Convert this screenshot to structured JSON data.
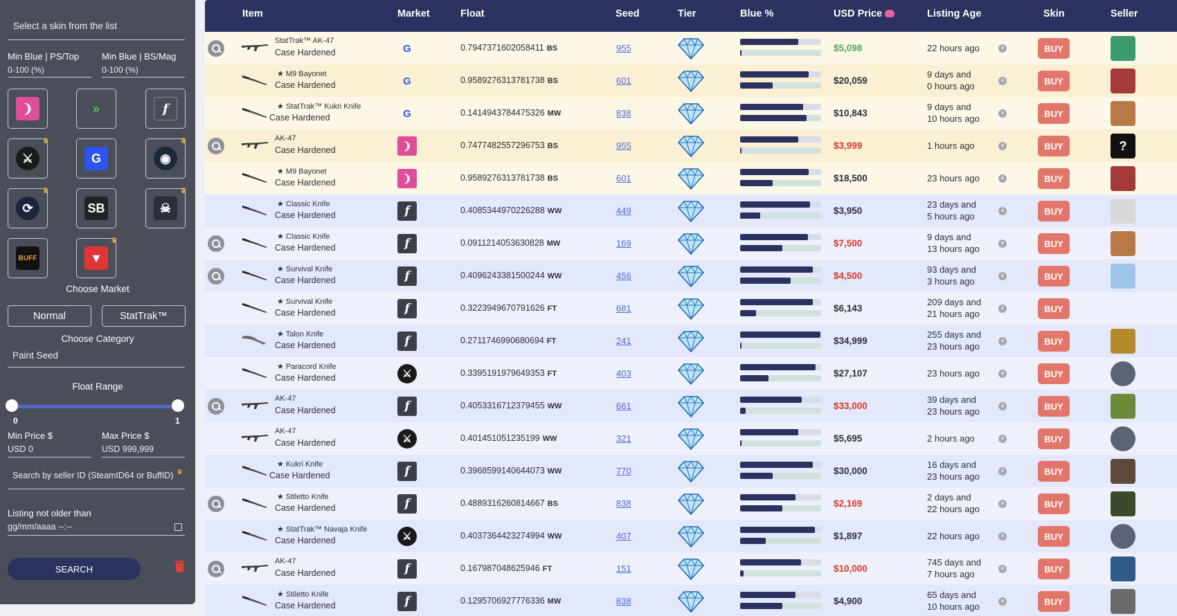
{
  "sidebar": {
    "skin_placeholder": "Select a skin from the list",
    "min_blue_ps_label": "Min Blue | PS/Top",
    "min_blue_ps_value": "0-100 (%)",
    "min_blue_bs_label": "Min Blue | BS/Mag",
    "min_blue_bs_value": "0-100 (%)",
    "choose_market": "Choose Market",
    "normal": "Normal",
    "stattrak": "StatTrak™",
    "choose_category": "Choose Category",
    "paint_seed": "Paint Seed",
    "float_range": "Float Range",
    "float_min": "0",
    "float_max": "1",
    "min_price_label": "Min Price $",
    "min_price_value": "USD 0",
    "max_price_label": "Max Price $",
    "max_price_value": "USD 999,999",
    "seller_search": "Search by seller ID (SteamID64 or BuffID)",
    "listing_age_label": "Listing not older than",
    "listing_age_value": "gg/mm/aaaa --:--",
    "search": "SEARCH",
    "markets": [
      {
        "name": "csfloat",
        "color": "#e04d9a",
        "glyph": "❩",
        "premium": false
      },
      {
        "name": "dmarket",
        "color": "#4a4e59",
        "glyph": "»",
        "premium": false
      },
      {
        "name": "skinport",
        "color": "#4a4e59",
        "glyph": "f",
        "premium": false
      },
      {
        "name": "skinbid",
        "color": "#1a1a1a",
        "glyph": "⚔",
        "premium": true
      },
      {
        "name": "gamerpay",
        "color": "#2d55ee",
        "glyph": "G",
        "premium": false
      },
      {
        "name": "steam",
        "color": "#1b2838",
        "glyph": "◉",
        "premium": true
      },
      {
        "name": "csmoney",
        "color": "#1d2440",
        "glyph": "⟳",
        "premium": true
      },
      {
        "name": "skinbaron",
        "color": "#222222",
        "glyph": "SB",
        "premium": false
      },
      {
        "name": "lootfarm",
        "color": "#2a2f3a",
        "glyph": "☠",
        "premium": true
      },
      {
        "name": "buff",
        "color": "#111111",
        "glyph": "BUFF",
        "premium": false
      },
      {
        "name": "waxpeer",
        "color": "#e03535",
        "glyph": "▼",
        "premium": true
      }
    ]
  },
  "table": {
    "headers": {
      "item": "Item",
      "market": "Market",
      "float": "Float",
      "seed": "Seed",
      "tier": "Tier",
      "blue": "Blue %",
      "price": "USD Price",
      "age": "Listing Age",
      "skin": "Skin",
      "seller": "Seller"
    },
    "buy_label": "BUY",
    "rows": [
      {
        "name": "StatTrak™ AK-47",
        "sub": "Case Hardened",
        "market": "gamerpay",
        "float": "0.7947371602058411",
        "wear": "BS",
        "seed": "955",
        "blue_top": 72,
        "blue_bot": 2,
        "price": "$5,098",
        "price_color": "green",
        "age": [
          "22 hours ago"
        ],
        "zoom": true,
        "avatar": "#3b9b6e",
        "avatar_round": false,
        "avatar_glyph": "",
        "row_style": "yellow",
        "weapon": "rifle"
      },
      {
        "name": "★ M9 Bayonet",
        "sub": "Case Hardened",
        "market": "gamerpay",
        "float": "0.9589276313781738",
        "wear": "BS",
        "seed": "601",
        "blue_top": 85,
        "blue_bot": 40,
        "price": "$20,059",
        "price_color": "",
        "age": [
          "9 days and",
          "0 hours ago"
        ],
        "zoom": false,
        "avatar": "#a43a3a",
        "avatar_round": false,
        "avatar_glyph": "",
        "row_style": "yellow dark",
        "weapon": "knife"
      },
      {
        "name": "★ StatTrak™ Kukri Knife",
        "sub": "Case Hardened",
        "market": "gamerpay",
        "float": "0.1414943784475326",
        "wear": "MW",
        "seed": "838",
        "blue_top": 78,
        "blue_bot": 82,
        "price": "$10,843",
        "price_color": "",
        "age": [
          "9 days and",
          "10 hours ago"
        ],
        "zoom": false,
        "avatar": "#b87a45",
        "avatar_round": false,
        "avatar_glyph": "",
        "row_style": "yellow",
        "weapon": "knife"
      },
      {
        "name": "AK-47",
        "sub": "Case Hardened",
        "market": "csfloat",
        "float": "0.7477482557296753",
        "wear": "BS",
        "seed": "955",
        "blue_top": 72,
        "blue_bot": 2,
        "price": "$3,999",
        "price_color": "red",
        "age": [
          "1 hours ago"
        ],
        "zoom": true,
        "avatar": "#111111",
        "avatar_round": false,
        "avatar_glyph": "?",
        "row_style": "yellow dark",
        "weapon": "rifle"
      },
      {
        "name": "★ M9 Bayonet",
        "sub": "Case Hardened",
        "market": "csfloat",
        "float": "0.9589276313781738",
        "wear": "BS",
        "seed": "601",
        "blue_top": 85,
        "blue_bot": 40,
        "price": "$18,500",
        "price_color": "",
        "age": [
          "23 hours ago"
        ],
        "zoom": false,
        "avatar": "#a43a3a",
        "avatar_round": false,
        "avatar_glyph": "",
        "row_style": "yellow",
        "weapon": "knife"
      },
      {
        "name": "★ Classic Knife",
        "sub": "Case Hardened",
        "market": "skinport",
        "float": "0.4085344970226288",
        "wear": "WW",
        "seed": "449",
        "blue_top": 86,
        "blue_bot": 25,
        "price": "$3,950",
        "price_color": "",
        "age": [
          "23 days and",
          "5 hours ago"
        ],
        "zoom": false,
        "avatar": "#d8d8d8",
        "avatar_round": false,
        "avatar_glyph": "",
        "row_style": "blue",
        "weapon": "knife"
      },
      {
        "name": "★ Classic Knife",
        "sub": "Case Hardened",
        "market": "skinport",
        "float": "0.0911214053630828",
        "wear": "MW",
        "seed": "169",
        "blue_top": 84,
        "blue_bot": 52,
        "price": "$7,500",
        "price_color": "red",
        "age": [
          "9 days and",
          "13 hours ago"
        ],
        "zoom": true,
        "avatar": "#b87a45",
        "avatar_round": false,
        "avatar_glyph": "",
        "row_style": "blue light",
        "weapon": "knife"
      },
      {
        "name": "★ Survival Knife",
        "sub": "Case Hardened",
        "market": "skinport",
        "float": "0.4096243381500244",
        "wear": "WW",
        "seed": "456",
        "blue_top": 90,
        "blue_bot": 62,
        "price": "$4,500",
        "price_color": "red",
        "age": [
          "93 days and",
          "3 hours ago"
        ],
        "zoom": true,
        "avatar": "#9cc4e8",
        "avatar_round": false,
        "avatar_glyph": "",
        "row_style": "blue",
        "weapon": "knife"
      },
      {
        "name": "★ Survival Knife",
        "sub": "Case Hardened",
        "market": "skinport",
        "float": "0.3223949670791626",
        "wear": "FT",
        "seed": "681",
        "blue_top": 90,
        "blue_bot": 20,
        "price": "$6,143",
        "price_color": "",
        "age": [
          "209 days and",
          "21 hours ago"
        ],
        "zoom": false,
        "avatar": "",
        "avatar_round": false,
        "avatar_glyph": "",
        "row_style": "blue light",
        "weapon": "knife"
      },
      {
        "name": "★ Talon Knife",
        "sub": "Case Hardened",
        "market": "skinport",
        "float": "0.2711746990680694",
        "wear": "FT",
        "seed": "241",
        "blue_top": 99,
        "blue_bot": 2,
        "price": "$34,999",
        "price_color": "",
        "age": [
          "255 days and",
          "23 hours ago"
        ],
        "zoom": false,
        "avatar": "#b58a2a",
        "avatar_round": false,
        "avatar_glyph": "",
        "row_style": "blue",
        "weapon": "talon"
      },
      {
        "name": "★ Paracord Knife",
        "sub": "Case Hardened",
        "market": "skinbid",
        "float": "0.3395191979649353",
        "wear": "FT",
        "seed": "403",
        "blue_top": 93,
        "blue_bot": 35,
        "price": "$27,107",
        "price_color": "",
        "age": [
          "23 hours ago"
        ],
        "zoom": false,
        "avatar": "#5a6275",
        "avatar_round": true,
        "avatar_glyph": "",
        "row_style": "blue light",
        "weapon": "knife"
      },
      {
        "name": "AK-47",
        "sub": "Case Hardened",
        "market": "skinport",
        "float": "0.4053316712379455",
        "wear": "WW",
        "seed": "661",
        "blue_top": 76,
        "blue_bot": 7,
        "price": "$33,000",
        "price_color": "red",
        "age": [
          "39 days and",
          "23 hours ago"
        ],
        "zoom": true,
        "avatar": "#6b8a3a",
        "avatar_round": false,
        "avatar_glyph": "",
        "row_style": "blue",
        "weapon": "rifle"
      },
      {
        "name": "AK-47",
        "sub": "Case Hardened",
        "market": "skinbid",
        "float": "0.401451051235199",
        "wear": "WW",
        "seed": "321",
        "blue_top": 72,
        "blue_bot": 2,
        "price": "$5,695",
        "price_color": "",
        "age": [
          "2 hours ago"
        ],
        "zoom": false,
        "avatar": "#5a6275",
        "avatar_round": true,
        "avatar_glyph": "",
        "row_style": "blue light",
        "weapon": "rifle"
      },
      {
        "name": "★ Kukri Knife",
        "sub": "Case Hardened",
        "market": "skinport",
        "float": "0.3968599140644073",
        "wear": "WW",
        "seed": "770",
        "blue_top": 90,
        "blue_bot": 40,
        "price": "$30,000",
        "price_color": "",
        "age": [
          "16 days and",
          "23 hours ago"
        ],
        "zoom": false,
        "avatar": "#5d4a3a",
        "avatar_round": false,
        "avatar_glyph": "",
        "row_style": "blue",
        "weapon": "knife"
      },
      {
        "name": "★ Stiletto Knife",
        "sub": "Case Hardened",
        "market": "skinport",
        "float": "0.4889316260814667",
        "wear": "BS",
        "seed": "838",
        "blue_top": 68,
        "blue_bot": 52,
        "price": "$2,169",
        "price_color": "red",
        "age": [
          "2 days and",
          "22 hours ago"
        ],
        "zoom": true,
        "avatar": "#3a4a2a",
        "avatar_round": false,
        "avatar_glyph": "",
        "row_style": "blue light",
        "weapon": "knife"
      },
      {
        "name": "★ StatTrak™ Navaja Knife",
        "sub": "Case Hardened",
        "market": "skinbid",
        "float": "0.4037364423274994",
        "wear": "WW",
        "seed": "407",
        "blue_top": 92,
        "blue_bot": 32,
        "price": "$1,897",
        "price_color": "",
        "age": [
          "22 hours ago"
        ],
        "zoom": false,
        "avatar": "#5a6275",
        "avatar_round": true,
        "avatar_glyph": "",
        "row_style": "blue",
        "weapon": "knife"
      },
      {
        "name": "AK-47",
        "sub": "Case Hardened",
        "market": "skinport",
        "float": "0.167987048625946",
        "wear": "FT",
        "seed": "151",
        "blue_top": 75,
        "blue_bot": 4,
        "price": "$10,000",
        "price_color": "red",
        "age": [
          "745 days and",
          "7 hours ago"
        ],
        "zoom": true,
        "avatar": "#2f5a8a",
        "avatar_round": false,
        "avatar_glyph": "",
        "row_style": "blue light",
        "weapon": "rifle"
      },
      {
        "name": "★ Stiletto Knife",
        "sub": "Case Hardened",
        "market": "skinport",
        "float": "0.1295706927776336",
        "wear": "MW",
        "seed": "838",
        "blue_top": 68,
        "blue_bot": 52,
        "price": "$4,900",
        "price_color": "",
        "age": [
          "65 days and",
          "10 hours ago"
        ],
        "zoom": false,
        "avatar": "#6a6a6a",
        "avatar_round": false,
        "avatar_glyph": "",
        "row_style": "blue",
        "weapon": "knife"
      }
    ]
  }
}
